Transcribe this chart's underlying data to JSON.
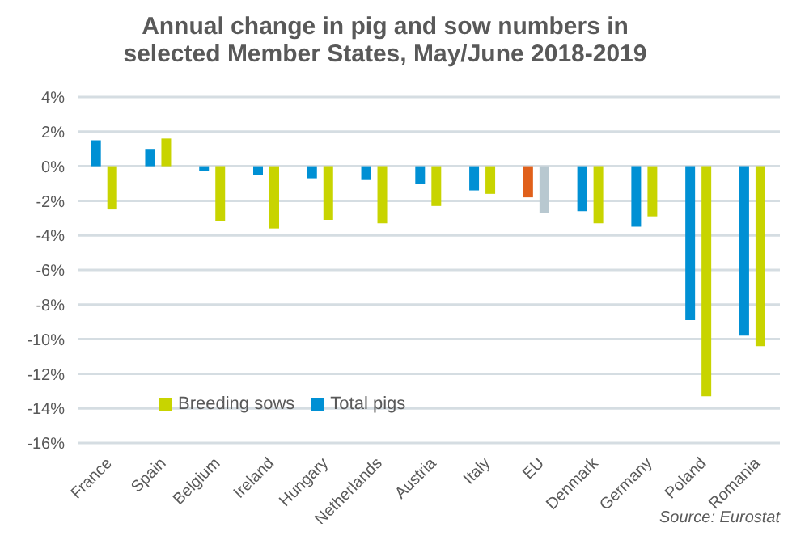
{
  "chart_data": {
    "type": "bar",
    "title": "Annual change in pig and sow numbers in selected Member States, May/June 2018-2019",
    "categories": [
      "France",
      "Spain",
      "Belgium",
      "Ireland",
      "Hungary",
      "Netherlands",
      "Austria",
      "Italy",
      "EU",
      "Denmark",
      "Germany",
      "Poland",
      "Romania"
    ],
    "series": [
      {
        "name": "Total pigs",
        "color": "#0090d4",
        "colors": [
          "#0090d4",
          "#0090d4",
          "#0090d4",
          "#0090d4",
          "#0090d4",
          "#0090d4",
          "#0090d4",
          "#0090d4",
          "#e0601b",
          "#0090d4",
          "#0090d4",
          "#0090d4",
          "#0090d4"
        ],
        "values": [
          1.5,
          1.0,
          -0.3,
          -0.5,
          -0.7,
          -0.8,
          -1.0,
          -1.4,
          -1.8,
          -2.6,
          -3.5,
          -8.9,
          -9.8
        ]
      },
      {
        "name": "Breeding sows",
        "color": "#c8d400",
        "colors": [
          "#c8d400",
          "#c8d400",
          "#c8d400",
          "#c8d400",
          "#c8d400",
          "#c8d400",
          "#c8d400",
          "#c8d400",
          "#b8c8d0",
          "#c8d400",
          "#c8d400",
          "#c8d400",
          "#c8d400"
        ],
        "values": [
          -2.5,
          1.6,
          -3.2,
          -3.6,
          -3.1,
          -3.3,
          -2.3,
          -1.6,
          -2.7,
          -3.3,
          -2.9,
          -13.3,
          -10.4
        ]
      }
    ],
    "ylim": [
      -16,
      4
    ],
    "yticks": [
      {
        "value": -16,
        "label": "-16%"
      },
      {
        "value": -14,
        "label": "-14%"
      },
      {
        "value": -12,
        "label": "-12%"
      },
      {
        "value": -10,
        "label": "-10%"
      },
      {
        "value": -8,
        "label": "-8%"
      },
      {
        "value": -6,
        "label": "-6%"
      },
      {
        "value": -4,
        "label": "-4%"
      },
      {
        "value": -2,
        "label": "-2%"
      },
      {
        "value": 0,
        "label": "0%"
      },
      {
        "value": 2,
        "label": "2%"
      },
      {
        "value": 4,
        "label": "4%"
      }
    ],
    "grid": "y",
    "legend": "left",
    "annotations": [
      "Source: Eurostat"
    ]
  }
}
